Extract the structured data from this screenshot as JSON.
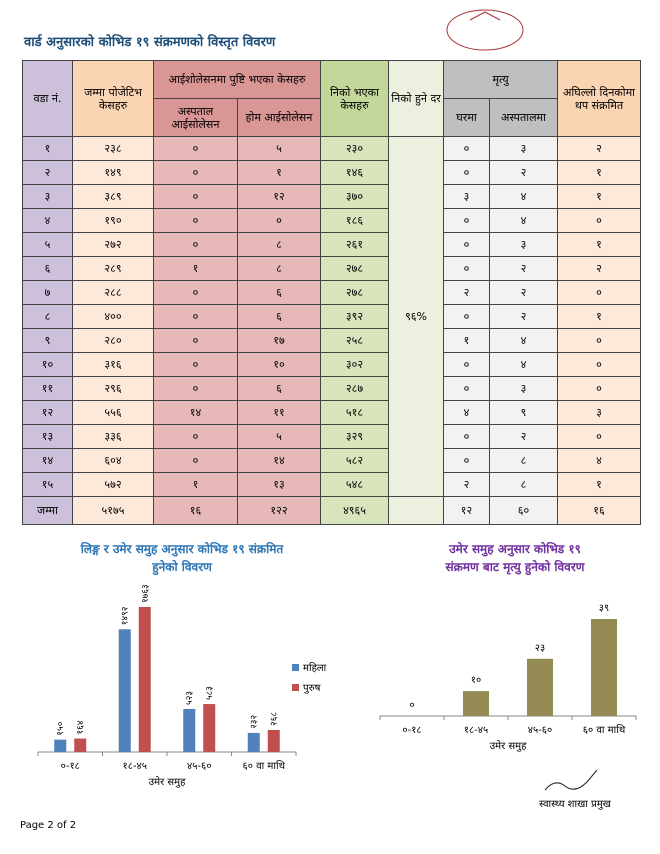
{
  "header": {
    "title": "वार्ड अनुसारको कोभिड १९ संक्रमणको विस्तृत विवरण"
  },
  "table": {
    "headers": {
      "ward": "वडा नं.",
      "total": "जम्मा पोजेटिभ केसहरु",
      "isolation": "आईशोलेसनमा पुष्टि भएका केसहरु",
      "hospital": "अस्पताल आईसोलेसन",
      "home": "होम आईसोलेसन",
      "recovered": "निको भएका केसहरु",
      "rate": "निको हुने दर",
      "death": "मृत्यु",
      "home_death": "घरमा",
      "hospital_death": "अस्पतालमा",
      "new": "अघिल्लो दिनकोमा थप संक्रमित"
    },
    "recovery_rate": "९६%",
    "rows": [
      [
        "१",
        "२३८",
        "०",
        "५",
        "२३०",
        "०",
        "३",
        "२"
      ],
      [
        "२",
        "१४९",
        "०",
        "१",
        "१४६",
        "०",
        "२",
        "१"
      ],
      [
        "३",
        "३८९",
        "०",
        "१२",
        "३७०",
        "३",
        "४",
        "१"
      ],
      [
        "४",
        "१९०",
        "०",
        "०",
        "१८६",
        "०",
        "४",
        "०"
      ],
      [
        "५",
        "२७२",
        "०",
        "८",
        "२६१",
        "०",
        "३",
        "१"
      ],
      [
        "६",
        "२८९",
        "१",
        "८",
        "२७८",
        "०",
        "२",
        "२"
      ],
      [
        "७",
        "२८८",
        "०",
        "६",
        "२७८",
        "२",
        "२",
        "०"
      ],
      [
        "८",
        "४००",
        "०",
        "६",
        "३९२",
        "०",
        "२",
        "१"
      ],
      [
        "९",
        "२८०",
        "०",
        "१७",
        "२५८",
        "१",
        "४",
        "०"
      ],
      [
        "१०",
        "३१६",
        "०",
        "१०",
        "३०२",
        "०",
        "४",
        "०"
      ],
      [
        "११",
        "२९६",
        "०",
        "६",
        "२८७",
        "०",
        "३",
        "०"
      ],
      [
        "१२",
        "५५६",
        "१४",
        "११",
        "५१८",
        "४",
        "९",
        "३"
      ],
      [
        "१३",
        "३३६",
        "०",
        "५",
        "३२९",
        "०",
        "२",
        "०"
      ],
      [
        "१४",
        "६०४",
        "०",
        "१४",
        "५८२",
        "०",
        "८",
        "४"
      ],
      [
        "१५",
        "५७२",
        "१",
        "१३",
        "५४८",
        "२",
        "८",
        "१"
      ]
    ],
    "total": [
      "जम्मा",
      "५१७५",
      "१६",
      "१२२",
      "४९६५",
      "१२",
      "६०",
      "१६"
    ]
  },
  "chart_data": [
    {
      "type": "bar",
      "title": [
        "लिङ्ग र उमेर समुह अनुसार कोभिड १९ संक्रमित",
        "हुनेको विवरण"
      ],
      "xlabel": "उमेर समुह",
      "categories": [
        "०-१८",
        "१८-४५",
        "४५-६०",
        "६० वा माथि"
      ],
      "legend": "right",
      "series": [
        {
          "name": "महिला",
          "color": "#4f81bd",
          "values": [
            150,
            1492,
            523,
            232
          ],
          "value_labels": [
            "१५०",
            "१४९२",
            "५२३",
            "२३२"
          ]
        },
        {
          "name": "पुरुष",
          "color": "#c0504d",
          "values": [
            164,
            1763,
            583,
            268
          ],
          "value_labels": [
            "१६४",
            "१७६३",
            "५८३",
            "२६८"
          ]
        }
      ]
    },
    {
      "type": "bar",
      "title": [
        "उमेर समुह अनुसार कोभिड १९",
        "संक्रमण बाट मृत्यु हुनेको विवरण"
      ],
      "xlabel": "उमेर समुह",
      "categories": [
        "०-१८",
        "१८-४५",
        "४५-६०",
        "६० वा माथि"
      ],
      "series": [
        {
          "color": "#948a54",
          "values": [
            0,
            10,
            23,
            39
          ],
          "value_labels": [
            "०",
            "१०",
            "२३",
            "३९"
          ]
        }
      ]
    }
  ],
  "signature": "स्वास्थ्य शाखा प्रमुख",
  "footer": "Page 2 of 2"
}
